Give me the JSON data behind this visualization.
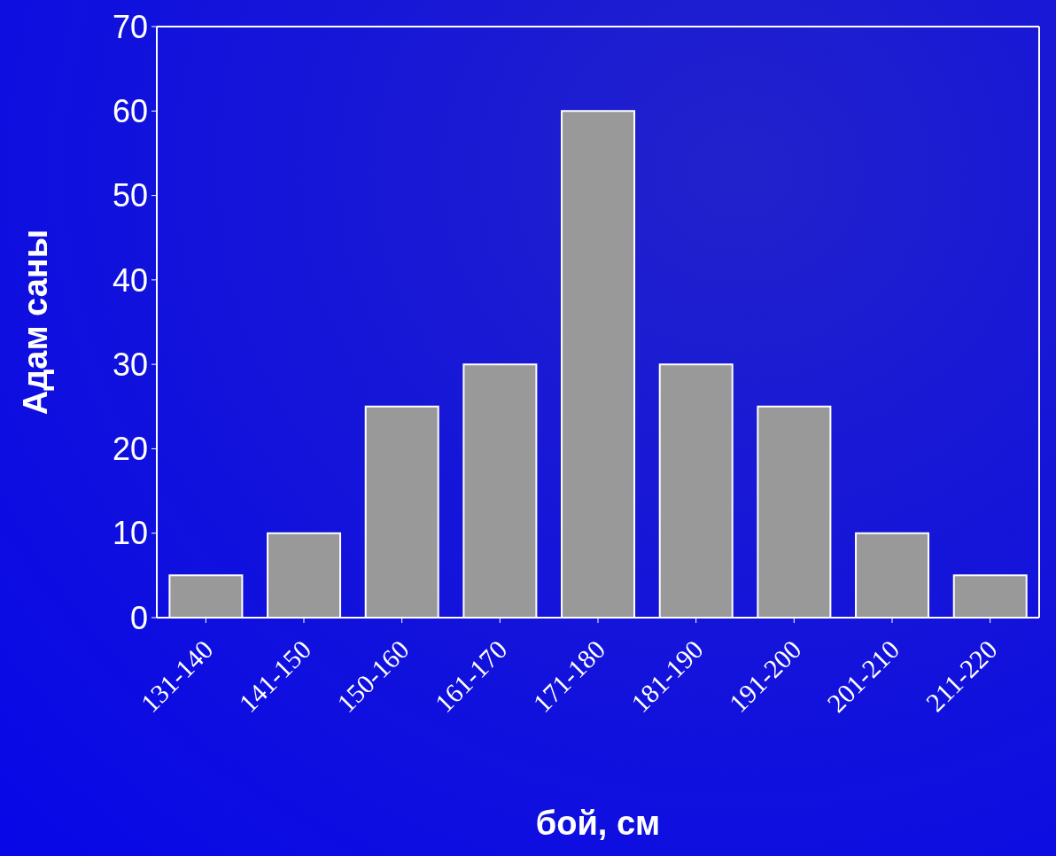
{
  "chart_data": {
    "type": "bar",
    "xlabel": "бой, см",
    "ylabel": "Адам саны",
    "categories": [
      "131-140",
      "141-150",
      "150-160",
      "161-170",
      "171-180",
      "181-190",
      "191-200",
      "201-210",
      "211-220"
    ],
    "values": [
      5,
      10,
      25,
      30,
      60,
      30,
      25,
      10,
      5
    ],
    "color": "#999999",
    "ylim": [
      0,
      70
    ],
    "yticks": [
      0,
      10,
      20,
      30,
      40,
      50,
      60,
      70
    ],
    "grid": false,
    "legend": false
  }
}
